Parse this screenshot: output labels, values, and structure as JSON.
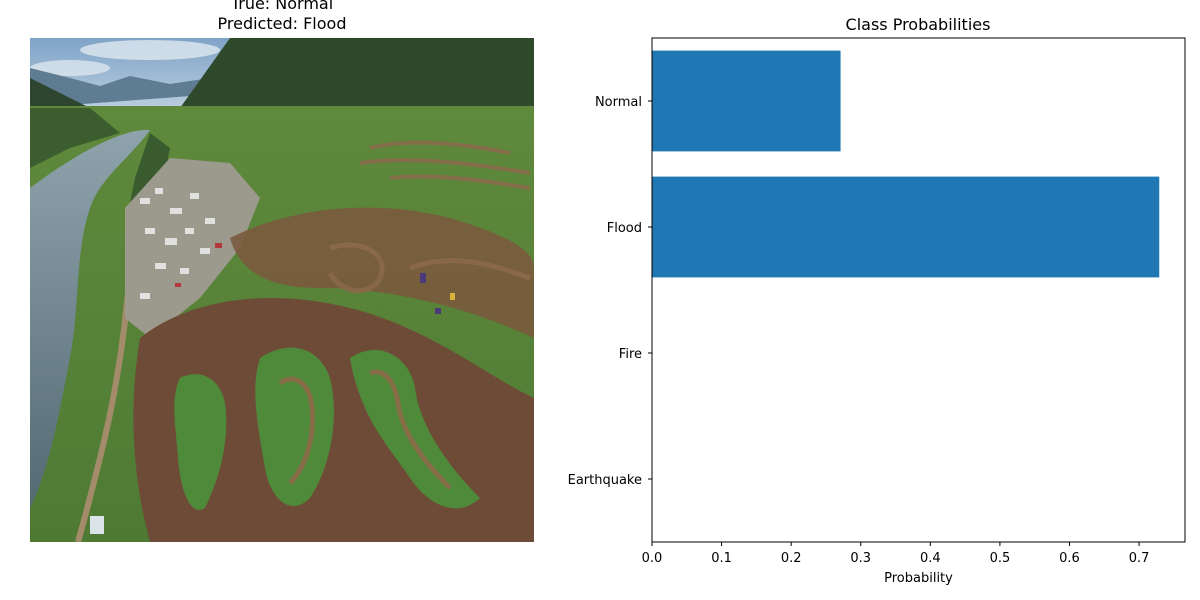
{
  "image_panel": {
    "true_label_line": "True: Normal",
    "predicted_label_line": "Predicted: Flood",
    "image_description_name": "aerial-motocross-track-photo"
  },
  "chart_data": {
    "type": "bar",
    "orientation": "horizontal",
    "title": "Class Probabilities",
    "xlabel": "Probability",
    "ylabel": "",
    "categories": [
      "Normal",
      "Flood",
      "Fire",
      "Earthquake"
    ],
    "values": [
      0.271,
      0.729,
      0.0,
      0.0
    ],
    "xlim": [
      0.0,
      0.766
    ],
    "xticks": [
      0.0,
      0.1,
      0.2,
      0.3,
      0.4,
      0.5,
      0.6,
      0.7
    ],
    "xtick_labels": [
      "0.0",
      "0.1",
      "0.2",
      "0.3",
      "0.4",
      "0.5",
      "0.6",
      "0.7"
    ],
    "bar_color": "#1f77b4",
    "grid": false
  }
}
